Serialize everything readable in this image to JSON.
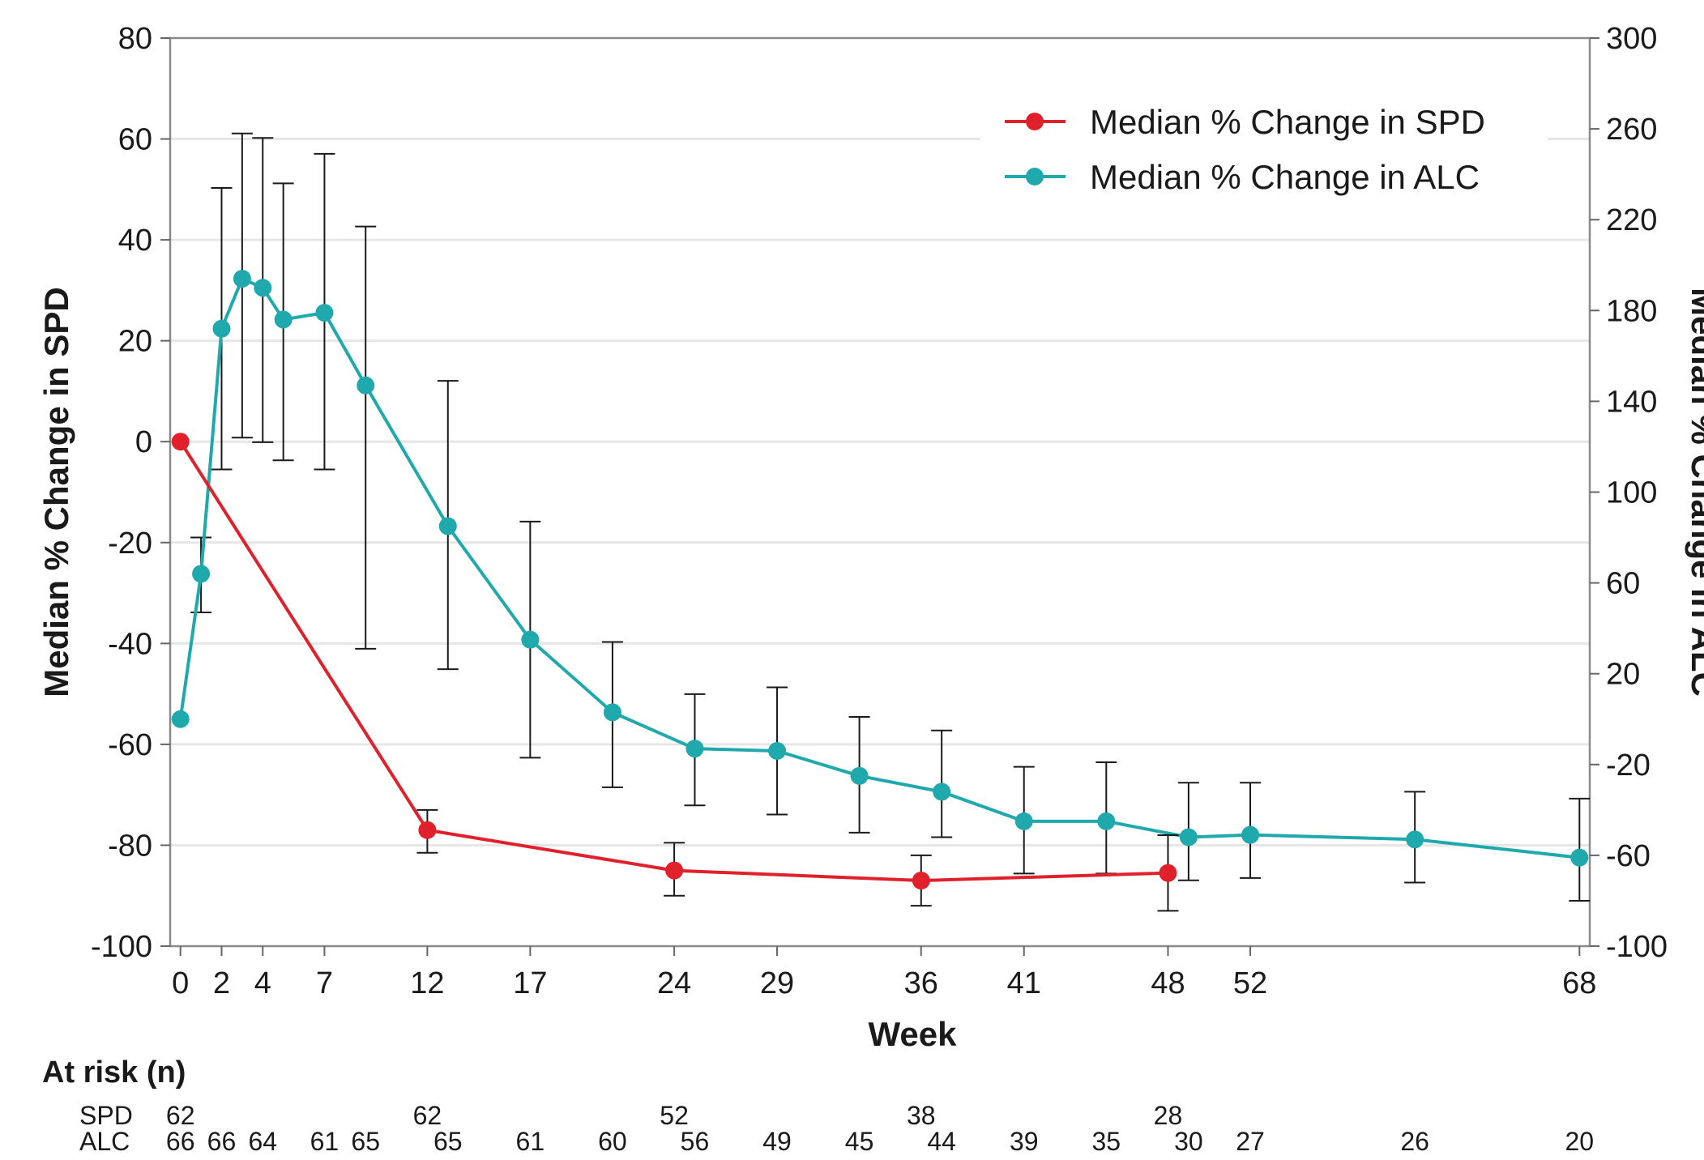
{
  "chart_data": {
    "type": "line",
    "title": "",
    "xlabel": "Week",
    "ylabel": "Median % Change in SPD",
    "y2label": "Median % Change in ALC",
    "xlim": [
      -0.5,
      68.5
    ],
    "ylim": [
      -100,
      80
    ],
    "y2lim": [
      -100,
      300
    ],
    "xticks": [
      0,
      2,
      4,
      7,
      12,
      17,
      24,
      29,
      36,
      41,
      48,
      52,
      68
    ],
    "yticks": [
      80,
      60,
      40,
      20,
      0,
      -20,
      -40,
      -60,
      -80,
      -100
    ],
    "y2ticks": [
      300,
      260,
      220,
      180,
      140,
      100,
      60,
      20,
      -20,
      -60,
      -100
    ],
    "grid": "horizontal",
    "legend": "top-right",
    "series": [
      {
        "name": "Median % Change in SPD",
        "axis": "left",
        "color": "#e0202a",
        "x": [
          0,
          12,
          24,
          36,
          48
        ],
        "y": [
          0,
          -77,
          -85,
          -87,
          -85.5
        ],
        "err_low": [
          null,
          -81.5,
          -90,
          -92,
          -93
        ],
        "err_high": [
          null,
          -73,
          -79.5,
          -82,
          -78
        ]
      },
      {
        "name": "Median % Change in ALC",
        "axis": "right",
        "color": "#1fa9ad",
        "x": [
          0,
          1,
          2,
          3,
          4,
          5,
          7,
          9,
          13,
          17,
          21,
          25,
          29,
          33,
          37,
          41,
          45,
          49,
          52,
          60,
          68
        ],
        "y": [
          0,
          64,
          172,
          194,
          190,
          176,
          179,
          147,
          85,
          35,
          3,
          -13,
          -14,
          -25,
          -32,
          -45,
          -45,
          -52,
          -51,
          -53,
          -61
        ],
        "err_low": [
          null,
          47,
          110,
          124,
          122,
          114,
          110,
          31,
          22,
          -17,
          -30,
          -38,
          -42,
          -50,
          -52,
          -68,
          -68,
          -71,
          -70,
          -72,
          -80
        ],
        "err_high": [
          null,
          80,
          234,
          258,
          256,
          236,
          249,
          217,
          149,
          87,
          34,
          11,
          14,
          1,
          -5,
          -21,
          -19,
          -28,
          -28,
          -32,
          -35
        ]
      }
    ],
    "at_risk": {
      "title": "At risk (n)",
      "rows": [
        {
          "label": "SPD",
          "x": [
            0,
            12,
            24,
            36,
            48
          ],
          "values": [
            "62",
            "62",
            "52",
            "38",
            "28"
          ]
        },
        {
          "label": "ALC",
          "x": [
            0,
            2,
            4,
            7,
            9,
            13,
            17,
            21,
            25,
            29,
            33,
            37,
            41,
            45,
            49,
            52,
            60,
            68
          ],
          "values": [
            "66",
            "66",
            "64",
            "61",
            "65",
            "65",
            "61",
            "60",
            "56",
            "49",
            "45",
            "44",
            "39",
            "35",
            "30",
            "27",
            "26",
            "20"
          ]
        }
      ]
    }
  }
}
